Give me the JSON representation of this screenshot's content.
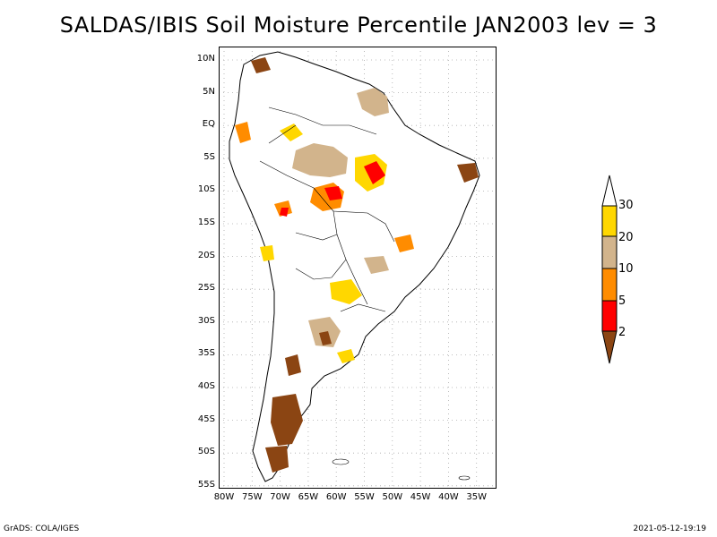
{
  "title": "SALDAS/IBIS Soil Moisture Percentile JAN2003 lev = 3",
  "footer": {
    "left": "GrADS: COLA/IGES",
    "right": "2021-05-12-19:19"
  },
  "axes": {
    "lat_labels": [
      "10N",
      "5N",
      "EQ",
      "5S",
      "10S",
      "15S",
      "20S",
      "25S",
      "30S",
      "35S",
      "40S",
      "45S",
      "50S",
      "55S"
    ],
    "lon_labels": [
      "80W",
      "75W",
      "70W",
      "65W",
      "60W",
      "55W",
      "50W",
      "45W",
      "40W",
      "35W"
    ]
  },
  "colorbar": {
    "labels": [
      "30",
      "20",
      "10",
      "5",
      "2"
    ],
    "colors": {
      "above30": "#ffffff",
      "c20_30": "#ffd700",
      "c10_20": "#d2b48c",
      "c5_10": "#ff8c00",
      "c2_5": "#ff0000",
      "below2": "#8b4513"
    }
  },
  "map": {
    "lon_range": [
      -81,
      -34
    ],
    "lat_range": [
      -56,
      12
    ],
    "grid": "dotted",
    "continent_outline_color": "#000000"
  }
}
